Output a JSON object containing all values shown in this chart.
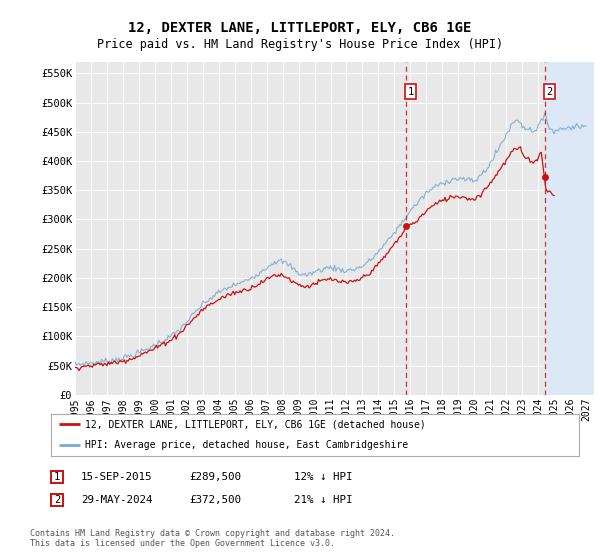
{
  "title1": "12, DEXTER LANE, LITTLEPORT, ELY, CB6 1GE",
  "title2": "Price paid vs. HM Land Registry's House Price Index (HPI)",
  "ylim": [
    0,
    570000
  ],
  "yticks": [
    0,
    50000,
    100000,
    150000,
    200000,
    250000,
    300000,
    350000,
    400000,
    450000,
    500000,
    550000
  ],
  "ytick_labels": [
    "£0",
    "£50K",
    "£100K",
    "£150K",
    "£200K",
    "£250K",
    "£300K",
    "£350K",
    "£400K",
    "£450K",
    "£500K",
    "£550K"
  ],
  "xlim_start": 1995.0,
  "xlim_end": 2027.5,
  "background_color": "#ffffff",
  "plot_bg_color": "#e8e8e8",
  "grid_color": "#ffffff",
  "hpi_color": "#7aaad0",
  "price_color": "#cc1111",
  "dashed_line_color": "#cc1111",
  "sale1_date_x": 2015.708,
  "sale1_price": 289500,
  "sale2_date_x": 2024.41,
  "sale2_price": 372500,
  "legend_text1": "12, DEXTER LANE, LITTLEPORT, ELY, CB6 1GE (detached house)",
  "legend_text2": "HPI: Average price, detached house, East Cambridgeshire",
  "footer1": "Contains HM Land Registry data © Crown copyright and database right 2024.",
  "footer2": "This data is licensed under the Open Government Licence v3.0.",
  "future_start_x": 2024.41,
  "hpi_anchors": [
    [
      1995.0,
      52000
    ],
    [
      1995.5,
      53000
    ],
    [
      1996.0,
      54500
    ],
    [
      1996.5,
      56000
    ],
    [
      1997.0,
      58000
    ],
    [
      1997.5,
      60000
    ],
    [
      1998.0,
      63000
    ],
    [
      1998.5,
      67000
    ],
    [
      1999.0,
      72000
    ],
    [
      1999.5,
      78000
    ],
    [
      2000.0,
      85000
    ],
    [
      2000.5,
      93000
    ],
    [
      2001.0,
      100000
    ],
    [
      2001.5,
      110000
    ],
    [
      2002.0,
      125000
    ],
    [
      2002.5,
      140000
    ],
    [
      2003.0,
      155000
    ],
    [
      2003.5,
      165000
    ],
    [
      2004.0,
      175000
    ],
    [
      2004.5,
      182000
    ],
    [
      2005.0,
      188000
    ],
    [
      2005.5,
      192000
    ],
    [
      2006.0,
      200000
    ],
    [
      2006.5,
      208000
    ],
    [
      2007.0,
      218000
    ],
    [
      2007.5,
      228000
    ],
    [
      2008.0,
      228000
    ],
    [
      2008.5,
      220000
    ],
    [
      2009.0,
      208000
    ],
    [
      2009.5,
      205000
    ],
    [
      2010.0,
      210000
    ],
    [
      2010.5,
      215000
    ],
    [
      2011.0,
      218000
    ],
    [
      2011.5,
      215000
    ],
    [
      2012.0,
      212000
    ],
    [
      2012.5,
      215000
    ],
    [
      2013.0,
      220000
    ],
    [
      2013.5,
      230000
    ],
    [
      2014.0,
      245000
    ],
    [
      2014.5,
      260000
    ],
    [
      2015.0,
      278000
    ],
    [
      2015.5,
      295000
    ],
    [
      2016.0,
      315000
    ],
    [
      2016.5,
      330000
    ],
    [
      2017.0,
      345000
    ],
    [
      2017.5,
      355000
    ],
    [
      2018.0,
      362000
    ],
    [
      2018.5,
      368000
    ],
    [
      2019.0,
      370000
    ],
    [
      2019.5,
      368000
    ],
    [
      2020.0,
      365000
    ],
    [
      2020.5,
      378000
    ],
    [
      2021.0,
      395000
    ],
    [
      2021.5,
      420000
    ],
    [
      2022.0,
      445000
    ],
    [
      2022.3,
      460000
    ],
    [
      2022.6,
      470000
    ],
    [
      2022.9,
      468000
    ],
    [
      2023.0,
      460000
    ],
    [
      2023.3,
      455000
    ],
    [
      2023.6,
      452000
    ],
    [
      2023.9,
      455000
    ],
    [
      2024.0,
      460000
    ],
    [
      2024.2,
      468000
    ],
    [
      2024.41,
      475000
    ],
    [
      2024.6,
      465000
    ],
    [
      2024.8,
      455000
    ],
    [
      2025.0,
      452000
    ],
    [
      2025.5,
      455000
    ],
    [
      2026.0,
      458000
    ],
    [
      2026.5,
      460000
    ],
    [
      2027.0,
      458000
    ]
  ],
  "price_anchors": [
    [
      1995.0,
      47000
    ],
    [
      1995.5,
      48500
    ],
    [
      1996.0,
      50000
    ],
    [
      1996.5,
      51500
    ],
    [
      1997.0,
      53000
    ],
    [
      1997.5,
      55000
    ],
    [
      1998.0,
      58000
    ],
    [
      1998.5,
      62000
    ],
    [
      1999.0,
      67000
    ],
    [
      1999.5,
      73000
    ],
    [
      2000.0,
      79000
    ],
    [
      2000.5,
      87000
    ],
    [
      2001.0,
      94000
    ],
    [
      2001.5,
      104000
    ],
    [
      2002.0,
      118000
    ],
    [
      2002.5,
      132000
    ],
    [
      2003.0,
      146000
    ],
    [
      2003.5,
      155000
    ],
    [
      2004.0,
      163000
    ],
    [
      2004.5,
      170000
    ],
    [
      2005.0,
      175000
    ],
    [
      2005.5,
      178000
    ],
    [
      2006.0,
      183000
    ],
    [
      2006.5,
      190000
    ],
    [
      2007.0,
      197000
    ],
    [
      2007.5,
      205000
    ],
    [
      2008.0,
      205000
    ],
    [
      2008.5,
      197000
    ],
    [
      2009.0,
      188000
    ],
    [
      2009.5,
      185000
    ],
    [
      2010.0,
      190000
    ],
    [
      2010.5,
      195000
    ],
    [
      2011.0,
      198000
    ],
    [
      2011.5,
      194000
    ],
    [
      2012.0,
      191000
    ],
    [
      2012.5,
      194000
    ],
    [
      2013.0,
      200000
    ],
    [
      2013.5,
      210000
    ],
    [
      2014.0,
      223000
    ],
    [
      2014.5,
      240000
    ],
    [
      2015.0,
      258000
    ],
    [
      2015.5,
      275000
    ],
    [
      2015.708,
      289500
    ],
    [
      2016.0,
      290000
    ],
    [
      2016.5,
      300000
    ],
    [
      2017.0,
      315000
    ],
    [
      2017.5,
      325000
    ],
    [
      2018.0,
      332000
    ],
    [
      2018.5,
      338000
    ],
    [
      2019.0,
      340000
    ],
    [
      2019.5,
      337000
    ],
    [
      2020.0,
      334000
    ],
    [
      2020.5,
      346000
    ],
    [
      2021.0,
      362000
    ],
    [
      2021.5,
      382000
    ],
    [
      2022.0,
      400000
    ],
    [
      2022.3,
      413000
    ],
    [
      2022.6,
      422000
    ],
    [
      2022.9,
      420000
    ],
    [
      2023.0,
      412000
    ],
    [
      2023.3,
      405000
    ],
    [
      2023.6,
      400000
    ],
    [
      2023.9,
      400000
    ],
    [
      2024.0,
      405000
    ],
    [
      2024.2,
      415000
    ],
    [
      2024.41,
      372500
    ],
    [
      2024.5,
      350000
    ],
    [
      2024.8,
      345000
    ],
    [
      2025.0,
      342000
    ]
  ]
}
